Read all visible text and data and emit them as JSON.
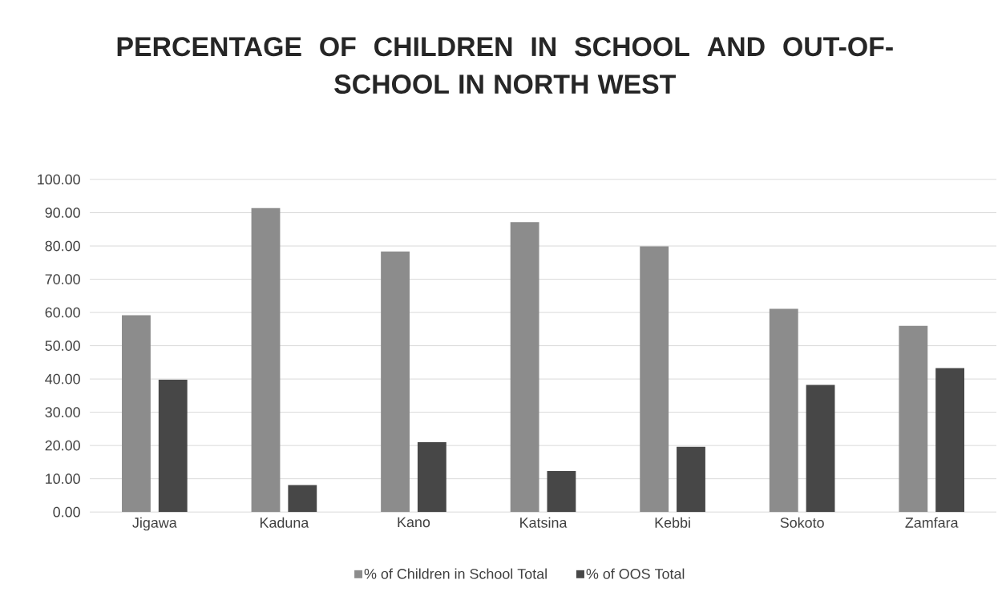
{
  "chart_data": {
    "type": "bar",
    "title": "PERCENTAGE OF CHILDREN IN SCHOOL AND OUT-OF-SCHOOL IN NORTH WEST",
    "categories": [
      "Jigawa",
      "Kaduna",
      "Kano",
      "Katsina",
      "Kebbi",
      "Sokoto",
      "Zamfara"
    ],
    "series": [
      {
        "name": "% of Children in School Total",
        "color": "#8c8c8c",
        "values": [
          59.2,
          91.4,
          78.3,
          87.2,
          79.9,
          61.1,
          56.0
        ]
      },
      {
        "name": "% of OOS Total",
        "color": "#474747",
        "values": [
          39.8,
          8.1,
          21.0,
          12.3,
          19.6,
          38.2,
          43.3
        ]
      }
    ],
    "ylim": [
      0,
      100
    ],
    "yticks": [
      {
        "value": 0,
        "label": "0.00"
      },
      {
        "value": 10,
        "label": "10.00"
      },
      {
        "value": 20,
        "label": "20.00"
      },
      {
        "value": 30,
        "label": "30.00"
      },
      {
        "value": 40,
        "label": "40.00"
      },
      {
        "value": 50,
        "label": "50.00"
      },
      {
        "value": 60,
        "label": "60.00"
      },
      {
        "value": 70,
        "label": "70.00"
      },
      {
        "value": 80,
        "label": "80.00"
      },
      {
        "value": 90,
        "label": "90.00"
      },
      {
        "value": 100,
        "label": "100.00"
      }
    ],
    "grid": "y",
    "legend": "bottom"
  }
}
